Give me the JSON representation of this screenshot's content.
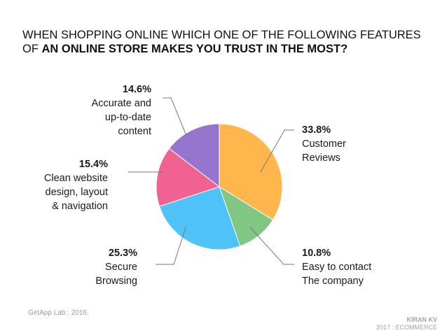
{
  "title": {
    "line1": "WHEN SHOPPING ONLINE WHICH ONE OF THE FOLLOWING  FEATURES",
    "line2_prefix": "OF ",
    "line2_bold": "AN ONLINE STORE MAKES YOU TRUST IN THE MOST?"
  },
  "chart_data": {
    "type": "pie",
    "title": "WHEN SHOPPING ONLINE WHICH ONE OF THE FOLLOWING FEATURES OF AN ONLINE STORE MAKES YOU TRUST IN THE MOST?",
    "slices": [
      {
        "pct_label": "33.8%",
        "line1": "Customer",
        "line2": "Reviews",
        "value": 33.8,
        "color": "#FFB74D"
      },
      {
        "pct_label": "10.8%",
        "line1": "Easy to contact",
        "line2": "The company",
        "value": 10.8,
        "color": "#81C784"
      },
      {
        "pct_label": "25.3%",
        "line1": "Secure",
        "line2": "Browsing",
        "value": 25.3,
        "color": "#4FC3F7"
      },
      {
        "pct_label": "15.4%",
        "line1": "Clean website",
        "line2": "design, layout",
        "line3": "& navigation",
        "value": 15.4,
        "color": "#F06292"
      },
      {
        "pct_label": "14.6%",
        "line1": "Accurate and",
        "line2": "up-to-date",
        "line3": "content",
        "value": 14.6,
        "color": "#9575CD"
      }
    ]
  },
  "footer": {
    "source": "GetApp Lab : 2016.",
    "brand_name": "KIRAN KV",
    "brand_sub": "2017 : ECOMMERCE"
  }
}
